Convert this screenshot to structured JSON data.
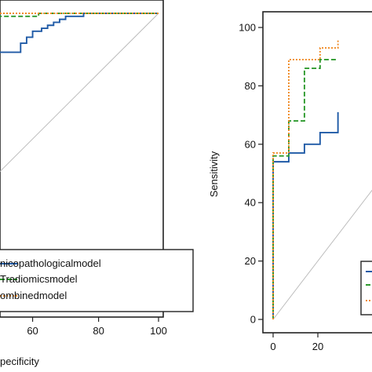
{
  "colors": {
    "clinical": "#1f5aa6",
    "radiomics": "#2e9a2e",
    "combined": "#f08a24",
    "diagonal": "#b8b8b8",
    "axis": "#222222"
  },
  "chart_data": [
    {
      "type": "line",
      "panel": "left",
      "xlabel": "pecificity",
      "ylabel": "",
      "xlim": [
        0,
        100
      ],
      "ylim": [
        0,
        100
      ],
      "xticks": [
        "60",
        "80",
        "100"
      ],
      "yticks": [],
      "grid": false,
      "legend_position": "bottom-right",
      "series": [
        {
          "name": "nicopathologicalmodel",
          "key": "clinical",
          "style": "solid",
          "x": [
            0,
            54,
            54,
            56,
            56,
            58,
            58,
            61,
            61,
            63,
            63,
            65,
            65,
            67,
            67,
            69,
            69,
            75,
            75,
            100,
            100
          ],
          "y": [
            87,
            87,
            90,
            90,
            92,
            92,
            94,
            94,
            95,
            95,
            96,
            96,
            97,
            97,
            98,
            98,
            99,
            99,
            100,
            100,
            100
          ]
        },
        {
          "name": "Tradiomicsmodel",
          "key": "radiomics",
          "style": "dashed",
          "x": [
            0,
            33,
            33,
            60,
            60,
            100
          ],
          "y": [
            98,
            98,
            99,
            99,
            100,
            100
          ]
        },
        {
          "name": "ombinedmodel",
          "key": "combined",
          "style": "dotted",
          "x": [
            0,
            100
          ],
          "y": [
            100,
            100
          ]
        }
      ]
    },
    {
      "type": "line",
      "panel": "right",
      "xlabel": "",
      "ylabel": "Sensitivity",
      "xlim": [
        0,
        100
      ],
      "ylim": [
        0,
        100
      ],
      "xticks": [
        "0",
        "20"
      ],
      "yticks": [
        "0",
        "20",
        "40",
        "60",
        "80",
        "100"
      ],
      "grid": false,
      "legend_position": "bottom-right",
      "series": [
        {
          "name": "",
          "key": "clinical",
          "style": "solid",
          "x": [
            0,
            0,
            7,
            7,
            14,
            14,
            21,
            21,
            29,
            29
          ],
          "y": [
            0,
            54,
            54,
            57,
            57,
            60,
            60,
            64,
            64,
            71
          ]
        },
        {
          "name": "",
          "key": "radiomics",
          "style": "dashed",
          "x": [
            0,
            0,
            7,
            7,
            14,
            14,
            21,
            21,
            29
          ],
          "y": [
            0,
            56,
            56,
            68,
            68,
            86,
            86,
            89,
            89
          ]
        },
        {
          "name": "",
          "key": "combined",
          "style": "dotted",
          "x": [
            0,
            0,
            7,
            7,
            14,
            14,
            21,
            21,
            29,
            29
          ],
          "y": [
            0,
            57,
            57,
            89,
            89,
            89,
            89,
            93,
            93,
            96
          ]
        }
      ]
    }
  ]
}
